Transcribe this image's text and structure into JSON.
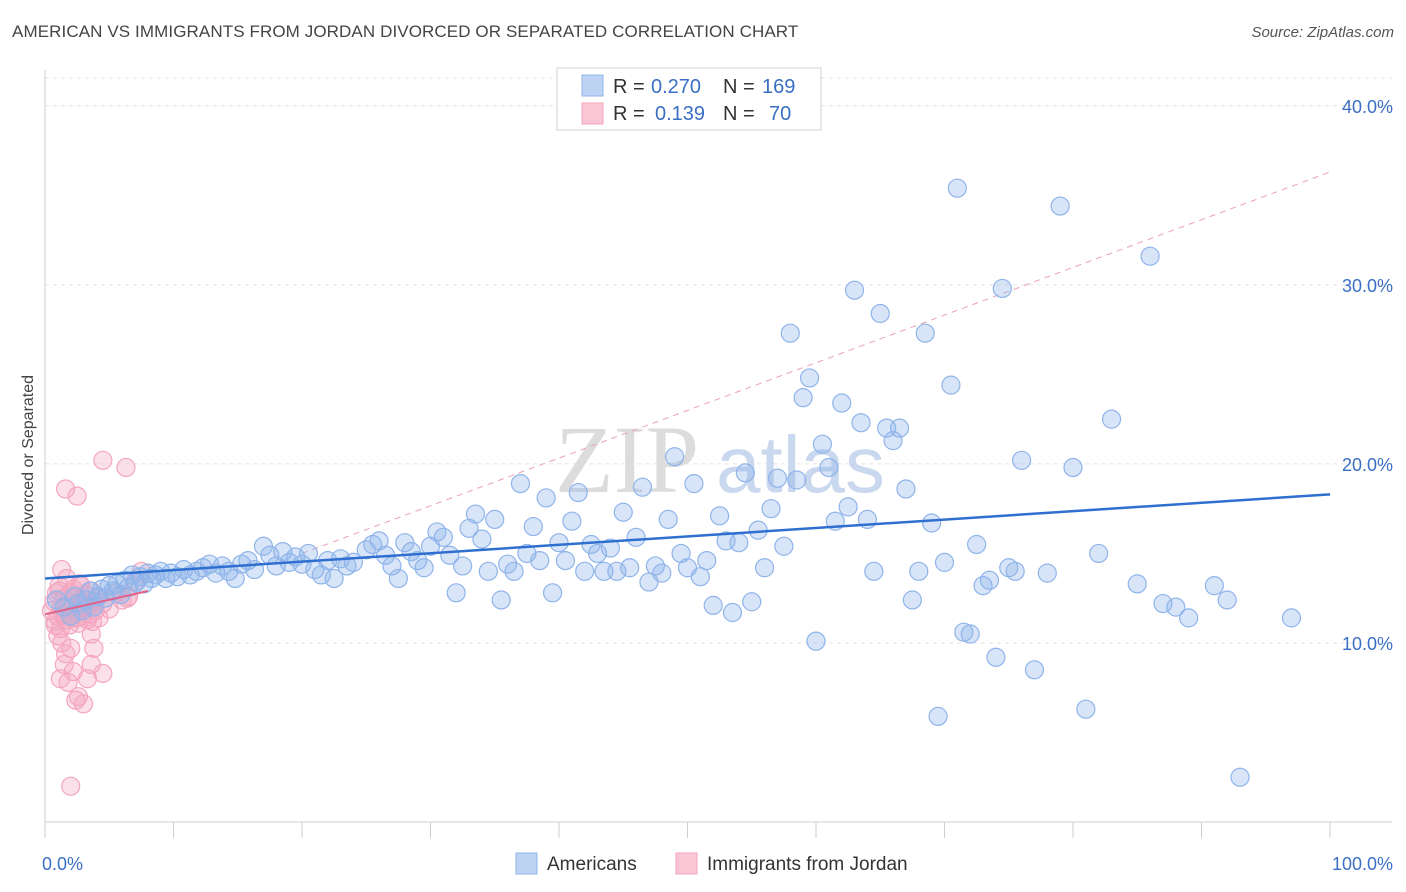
{
  "header": {
    "title": "AMERICAN VS IMMIGRANTS FROM JORDAN DIVORCED OR SEPARATED CORRELATION CHART",
    "source": "Source: ZipAtlas.com"
  },
  "watermark": {
    "part1": "ZIP",
    "part2": "atlas"
  },
  "legend": {
    "r_label": "R =",
    "n_label": "N =",
    "rows": [
      {
        "r": "0.270",
        "n": "169"
      },
      {
        "r": "0.139",
        "n": "70"
      }
    ]
  },
  "colors": {
    "americans": "#8fb4ea",
    "americans_line": "#2f6fcf",
    "jordan": "#f4a6bf",
    "jordan_line": "#e0608a"
  },
  "chart_data": {
    "type": "scatter",
    "xlabel": "",
    "ylabel": "Divorced or Separated",
    "xlim": [
      0,
      100
    ],
    "ylim": [
      0,
      42
    ],
    "x_tick_labels": [
      "0.0%",
      "100.0%"
    ],
    "y_ticks": [
      10,
      20,
      30,
      40
    ],
    "y_tick_labels": [
      "10.0%",
      "20.0%",
      "30.0%",
      "40.0%"
    ],
    "grid": "horizontal dashed",
    "legend_position": "top-center",
    "series": [
      {
        "name": "Americans",
        "trend": {
          "x": [
            0,
            100
          ],
          "y": [
            13.6,
            18.3
          ]
        },
        "points": [
          [
            1.5,
            12.0
          ],
          [
            2.0,
            11.5
          ],
          [
            2.3,
            12.6
          ],
          [
            2.6,
            12.2
          ],
          [
            2.9,
            11.8
          ],
          [
            3.2,
            12.4
          ],
          [
            3.5,
            12.9
          ],
          [
            3.8,
            12.0
          ],
          [
            4.1,
            12.6
          ],
          [
            4.4,
            13.0
          ],
          [
            4.7,
            12.5
          ],
          [
            5.0,
            13.2
          ],
          [
            5.3,
            12.9
          ],
          [
            5.6,
            13.3
          ],
          [
            5.9,
            12.7
          ],
          [
            6.2,
            13.5
          ],
          [
            6.5,
            13.1
          ],
          [
            6.8,
            13.8
          ],
          [
            7.1,
            13.4
          ],
          [
            7.4,
            13.7
          ],
          [
            7.7,
            13.3
          ],
          [
            8.0,
            13.9
          ],
          [
            8.3,
            13.6
          ],
          [
            8.6,
            13.8
          ],
          [
            9.0,
            14.0
          ],
          [
            9.4,
            13.6
          ],
          [
            9.8,
            13.9
          ],
          [
            10.3,
            13.7
          ],
          [
            10.8,
            14.1
          ],
          [
            11.3,
            13.8
          ],
          [
            11.8,
            14.0
          ],
          [
            12.3,
            14.2
          ],
          [
            12.8,
            14.4
          ],
          [
            13.3,
            13.9
          ],
          [
            13.8,
            14.3
          ],
          [
            14.3,
            14.0
          ],
          [
            14.8,
            13.6
          ],
          [
            15.3,
            14.4
          ],
          [
            15.8,
            14.6
          ],
          [
            16.3,
            14.1
          ],
          [
            17.0,
            15.4
          ],
          [
            17.5,
            14.9
          ],
          [
            18.0,
            14.3
          ],
          [
            18.5,
            15.1
          ],
          [
            19.0,
            14.5
          ],
          [
            19.5,
            14.8
          ],
          [
            20.0,
            14.4
          ],
          [
            20.5,
            15.0
          ],
          [
            21.0,
            14.1
          ],
          [
            21.5,
            13.8
          ],
          [
            22.0,
            14.6
          ],
          [
            22.5,
            13.6
          ],
          [
            23.0,
            14.7
          ],
          [
            23.5,
            14.3
          ],
          [
            24.0,
            14.5
          ],
          [
            25.0,
            15.2
          ],
          [
            25.5,
            15.5
          ],
          [
            26.0,
            15.7
          ],
          [
            26.5,
            14.9
          ],
          [
            27.0,
            14.3
          ],
          [
            27.5,
            13.6
          ],
          [
            28.0,
            15.6
          ],
          [
            28.5,
            15.1
          ],
          [
            29.0,
            14.6
          ],
          [
            29.5,
            14.2
          ],
          [
            30.0,
            15.4
          ],
          [
            30.5,
            16.2
          ],
          [
            31.0,
            15.9
          ],
          [
            31.5,
            14.9
          ],
          [
            32.0,
            12.8
          ],
          [
            32.5,
            14.3
          ],
          [
            33.0,
            16.4
          ],
          [
            33.5,
            17.2
          ],
          [
            34.0,
            15.8
          ],
          [
            34.5,
            14.0
          ],
          [
            35.0,
            16.9
          ],
          [
            35.5,
            12.4
          ],
          [
            36.0,
            14.4
          ],
          [
            36.5,
            14.0
          ],
          [
            37.0,
            18.9
          ],
          [
            37.5,
            15.0
          ],
          [
            38.0,
            16.5
          ],
          [
            38.5,
            14.6
          ],
          [
            39.0,
            18.1
          ],
          [
            39.5,
            12.8
          ],
          [
            40.0,
            15.6
          ],
          [
            40.5,
            14.6
          ],
          [
            41.0,
            16.8
          ],
          [
            41.5,
            18.4
          ],
          [
            42.0,
            14.0
          ],
          [
            42.5,
            15.5
          ],
          [
            43.0,
            15.0
          ],
          [
            43.5,
            14.0
          ],
          [
            44.0,
            15.3
          ],
          [
            44.5,
            14.0
          ],
          [
            45.0,
            17.3
          ],
          [
            45.5,
            14.2
          ],
          [
            46.0,
            15.9
          ],
          [
            46.5,
            18.7
          ],
          [
            47.0,
            13.4
          ],
          [
            47.5,
            14.3
          ],
          [
            48.0,
            13.9
          ],
          [
            48.5,
            16.9
          ],
          [
            49.0,
            20.4
          ],
          [
            49.5,
            15.0
          ],
          [
            50.0,
            14.2
          ],
          [
            50.5,
            18.9
          ],
          [
            51.0,
            13.7
          ],
          [
            51.5,
            14.6
          ],
          [
            52.0,
            12.1
          ],
          [
            52.5,
            17.1
          ],
          [
            53.0,
            15.7
          ],
          [
            53.5,
            11.7
          ],
          [
            54.0,
            15.6
          ],
          [
            54.5,
            19.5
          ],
          [
            55.0,
            12.3
          ],
          [
            55.5,
            16.3
          ],
          [
            56.0,
            14.2
          ],
          [
            56.5,
            17.5
          ],
          [
            57.0,
            19.2
          ],
          [
            57.5,
            15.4
          ],
          [
            58.0,
            27.3
          ],
          [
            58.5,
            19.1
          ],
          [
            59.0,
            23.7
          ],
          [
            59.5,
            24.8
          ],
          [
            60.0,
            10.1
          ],
          [
            60.5,
            21.1
          ],
          [
            61.0,
            19.8
          ],
          [
            61.5,
            16.8
          ],
          [
            62.0,
            23.4
          ],
          [
            62.5,
            17.6
          ],
          [
            63.0,
            29.7
          ],
          [
            63.5,
            22.3
          ],
          [
            64.0,
            16.9
          ],
          [
            64.5,
            14.0
          ],
          [
            65.0,
            28.4
          ],
          [
            65.5,
            22.0
          ],
          [
            66.0,
            21.3
          ],
          [
            66.5,
            22.0
          ],
          [
            67.0,
            18.6
          ],
          [
            67.5,
            12.4
          ],
          [
            68.0,
            14.0
          ],
          [
            68.5,
            27.3
          ],
          [
            69.0,
            16.7
          ],
          [
            69.5,
            5.9
          ],
          [
            70.0,
            14.5
          ],
          [
            70.5,
            24.4
          ],
          [
            71.0,
            35.4
          ],
          [
            71.5,
            10.6
          ],
          [
            72.0,
            10.5
          ],
          [
            72.5,
            15.5
          ],
          [
            73.0,
            13.2
          ],
          [
            73.5,
            13.5
          ],
          [
            74.0,
            9.2
          ],
          [
            74.5,
            29.8
          ],
          [
            75.0,
            14.2
          ],
          [
            75.5,
            14.0
          ],
          [
            76.0,
            20.2
          ],
          [
            77.0,
            8.5
          ],
          [
            78.0,
            13.9
          ],
          [
            79.0,
            34.4
          ],
          [
            80.0,
            19.8
          ],
          [
            81.0,
            6.3
          ],
          [
            82.0,
            15.0
          ],
          [
            83.0,
            22.5
          ],
          [
            85.0,
            13.3
          ],
          [
            86.0,
            31.6
          ],
          [
            87.0,
            12.2
          ],
          [
            88.0,
            12.0
          ],
          [
            89.0,
            11.4
          ],
          [
            91.0,
            13.2
          ],
          [
            92.0,
            12.4
          ],
          [
            93.0,
            2.5
          ],
          [
            97.0,
            11.4
          ],
          [
            0.9,
            12.4
          ]
        ]
      },
      {
        "name": "Immigrants from Jordan",
        "trend": {
          "x": [
            0,
            8
          ],
          "y": [
            11.6,
            12.9
          ]
        },
        "points": [
          [
            0.5,
            11.8
          ],
          [
            0.7,
            12.3
          ],
          [
            0.8,
            11.2
          ],
          [
            0.9,
            12.8
          ],
          [
            1.0,
            11.5
          ],
          [
            1.1,
            13.2
          ],
          [
            1.2,
            10.8
          ],
          [
            1.3,
            12.0
          ],
          [
            1.4,
            11.6
          ],
          [
            1.5,
            12.5
          ],
          [
            1.6,
            11.3
          ],
          [
            1.7,
            13.6
          ],
          [
            1.8,
            12.1
          ],
          [
            1.9,
            11.0
          ],
          [
            2.0,
            12.8
          ],
          [
            2.1,
            11.4
          ],
          [
            2.2,
            13.0
          ],
          [
            2.3,
            12.2
          ],
          [
            2.4,
            11.7
          ],
          [
            2.5,
            12.6
          ],
          [
            2.6,
            11.1
          ],
          [
            2.7,
            13.3
          ],
          [
            2.8,
            12.0
          ],
          [
            2.9,
            11.5
          ],
          [
            3.0,
            12.4
          ],
          [
            3.1,
            11.9
          ],
          [
            3.2,
            12.7
          ],
          [
            3.3,
            11.3
          ],
          [
            3.4,
            12.1
          ],
          [
            3.5,
            11.6
          ],
          [
            3.6,
            12.9
          ],
          [
            3.7,
            11.2
          ],
          [
            3.8,
            12.3
          ],
          [
            3.9,
            11.8
          ],
          [
            4.0,
            12.5
          ],
          [
            4.2,
            11.4
          ],
          [
            4.5,
            12.2
          ],
          [
            5.0,
            11.9
          ],
          [
            5.5,
            12.8
          ],
          [
            6.0,
            12.4
          ],
          [
            6.5,
            12.6
          ],
          [
            7.0,
            13.4
          ],
          [
            7.5,
            14.0
          ],
          [
            1.0,
            10.4
          ],
          [
            1.3,
            10.0
          ],
          [
            1.6,
            9.4
          ],
          [
            1.2,
            8.0
          ],
          [
            1.5,
            8.8
          ],
          [
            1.8,
            7.8
          ],
          [
            2.0,
            9.7
          ],
          [
            2.2,
            8.4
          ],
          [
            2.4,
            6.8
          ],
          [
            2.6,
            7.0
          ],
          [
            3.0,
            6.6
          ],
          [
            3.3,
            8.0
          ],
          [
            3.6,
            8.8
          ],
          [
            3.8,
            9.7
          ],
          [
            3.6,
            10.5
          ],
          [
            4.5,
            8.3
          ],
          [
            2.5,
            18.2
          ],
          [
            1.6,
            18.6
          ],
          [
            4.5,
            20.2
          ],
          [
            6.3,
            19.8
          ],
          [
            2.0,
            2.0
          ],
          [
            1.3,
            14.1
          ],
          [
            2.8,
            13.2
          ],
          [
            1.1,
            12.9
          ],
          [
            0.8,
            11.0
          ],
          [
            6.4,
            12.5
          ],
          [
            2.5,
            11.4
          ]
        ]
      }
    ]
  }
}
